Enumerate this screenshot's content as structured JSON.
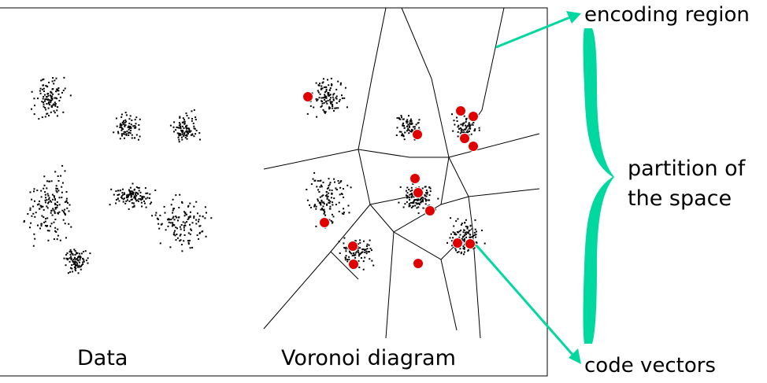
{
  "labels": {
    "data": "Data",
    "voronoi": "Voronoi diagram",
    "encoding_region": "encoding region",
    "partition_line1": "partition of",
    "partition_line2": "the space",
    "code_vectors": "code vectors"
  },
  "colors": {
    "code_vector": "#e00000",
    "annotation": "#00d8a0",
    "ink": "#000000"
  }
}
